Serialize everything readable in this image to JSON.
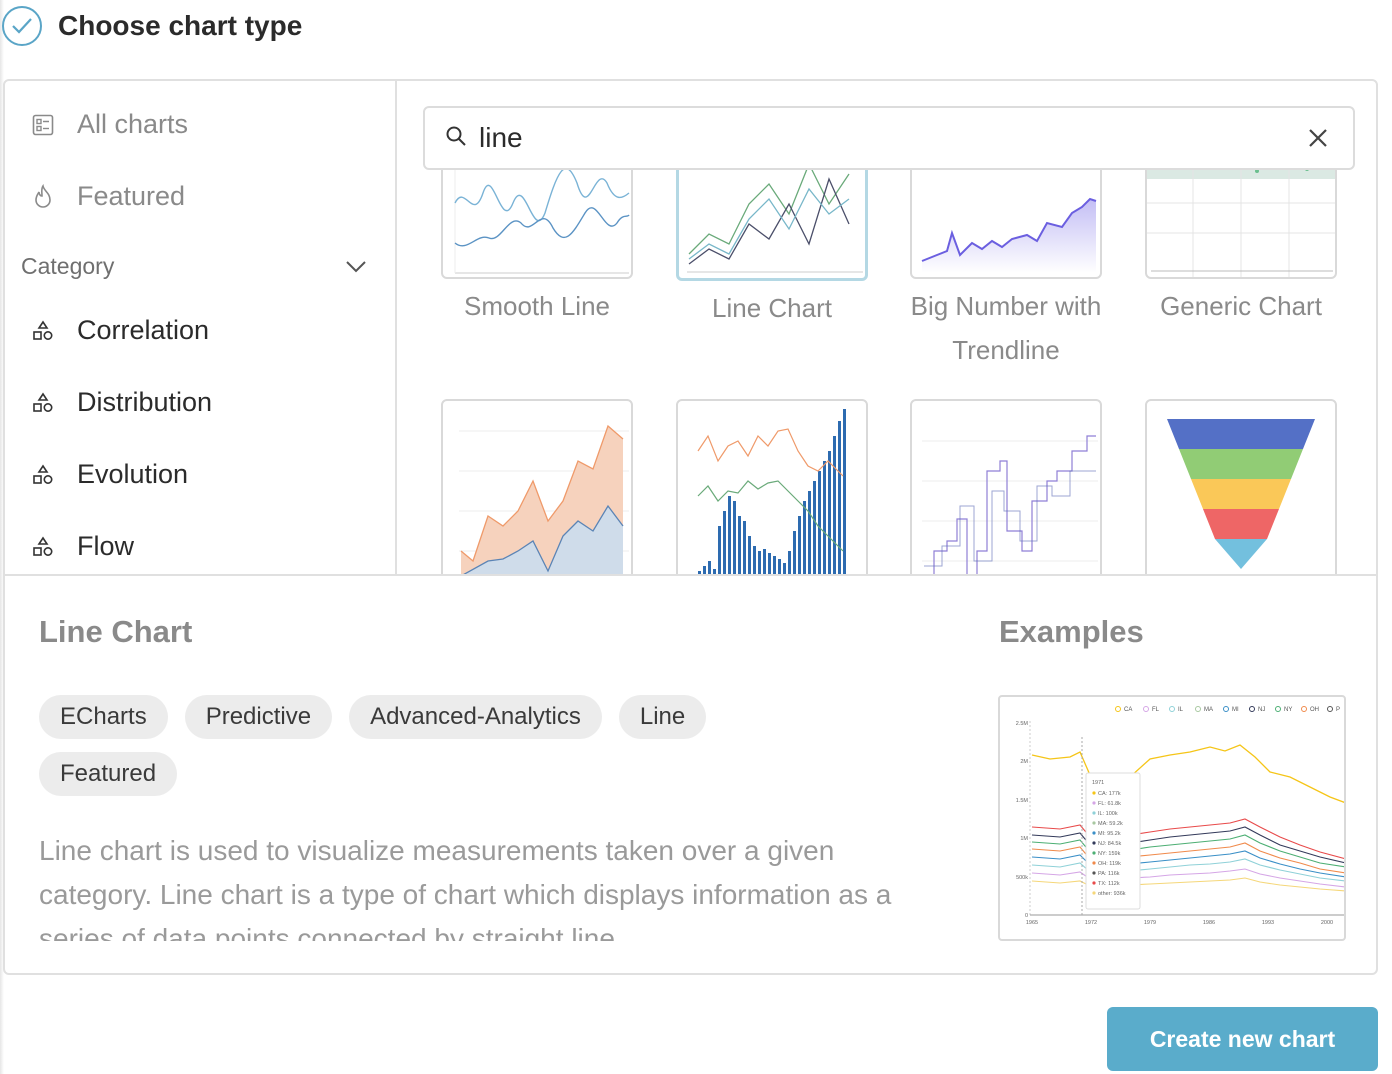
{
  "header": {
    "title": "Choose chart type",
    "icon": "check-circle-icon"
  },
  "sidebar": {
    "all_charts": "All charts",
    "featured": "Featured",
    "category_label": "Category",
    "categories": [
      "Correlation",
      "Distribution",
      "Evolution",
      "Flow"
    ]
  },
  "search": {
    "value": "line"
  },
  "gallery": {
    "row1": [
      "Smooth Line",
      "Line Chart",
      "Big Number with Trendline",
      "Generic Chart"
    ],
    "selected": "Line Chart"
  },
  "detail": {
    "title": "Line Chart",
    "tags": [
      "ECharts",
      "Predictive",
      "Advanced-Analytics",
      "Line",
      "Featured"
    ],
    "description": "Line chart is used to visualize measurements taken over a given category. Line chart is a type of chart which displays information as a series of data points connected by straight line"
  },
  "examples": {
    "title": "Examples",
    "legend": [
      "CA",
      "FL",
      "IL",
      "MA",
      "MI",
      "NJ",
      "NY",
      "OH",
      "P"
    ],
    "y_ticks": [
      "2.5M",
      "2M",
      "1.5M",
      "1M",
      "500k",
      "0"
    ],
    "x_ticks": [
      "1965",
      "1972",
      "1979",
      "1986",
      "1993",
      "2000"
    ],
    "tooltip_title": "1971",
    "tooltip_rows": [
      "CA: 177k",
      "FL: 61.8k",
      "IL: 100k",
      "MA: 59.2k",
      "MI: 95.2k",
      "NJ: 84.5k",
      "NY: 159k",
      "OH: 119k",
      "PA: 116k",
      "TX: 112k",
      "other: 936k"
    ]
  },
  "footer": {
    "create_label": "Create new chart"
  },
  "colors": {
    "accent": "#5aaccb",
    "selected_border": "#b4d8e4"
  }
}
